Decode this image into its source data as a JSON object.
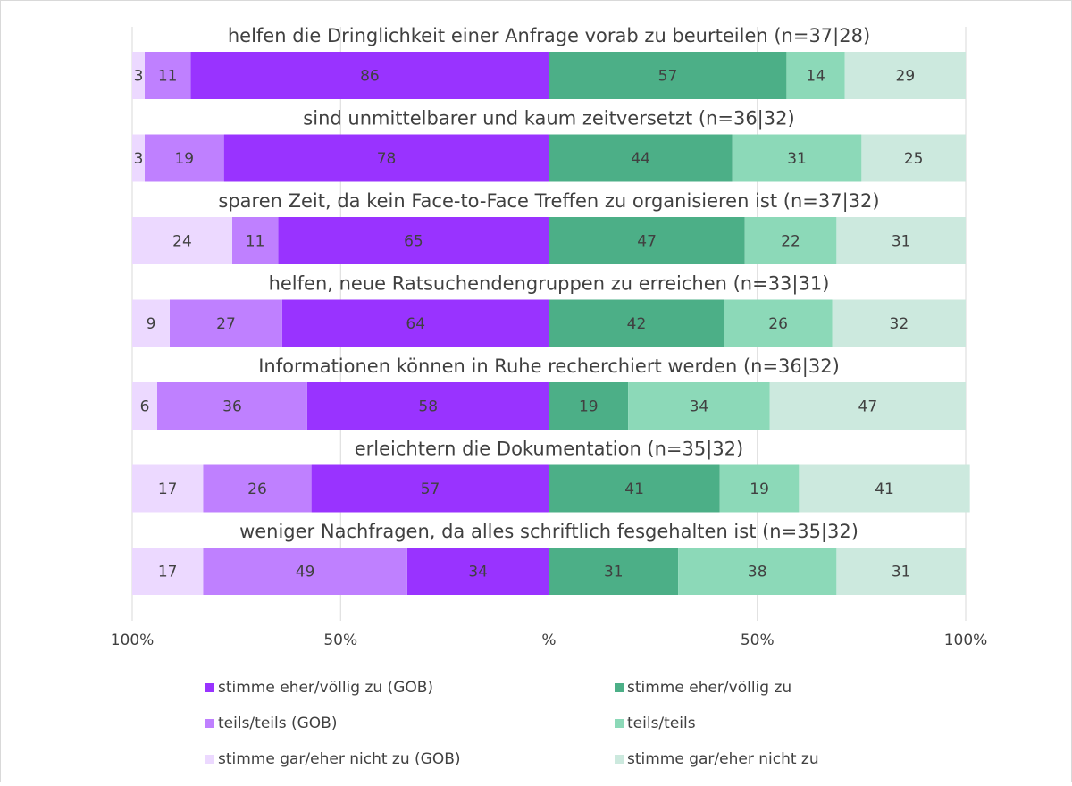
{
  "chart_data": {
    "type": "diverging-bar",
    "categories": [
      "helfen die Dringlichkeit einer Anfrage vorab zu beurteilen (n=37|28)",
      "sind unmittelbarer und kaum zeitversetzt (n=36|32)",
      "sparen Zeit, da kein Face-to-Face Treffen zu organisieren ist (n=37|32)",
      "helfen, neue Ratsuchendengruppen zu erreichen (n=33|31)",
      "Informationen können in Ruhe recherchiert werden (n=36|32)",
      "erleichtern die Dokumentation (n=35|32)",
      "weniger Nachfragen, da alles schriftlich fesgehalten ist (n=35|32)"
    ],
    "series": [
      {
        "name": "stimme eher/völlig zu (GOB)",
        "color": "#9933ff",
        "label_color": "#ffffff",
        "values": [
          -86,
          -78,
          -65,
          -64,
          -58,
          -57,
          -34
        ],
        "value_labels": [
          "86",
          "78",
          "65",
          "64",
          "58",
          "57",
          "34"
        ]
      },
      {
        "name": "teils/teils (GOB)",
        "color": "#bf80ff",
        "label_color": "#404040",
        "values": [
          -11,
          -19,
          -11,
          -27,
          -36,
          -26,
          -49
        ],
        "value_labels": [
          "11",
          "19",
          "11",
          "27",
          "36",
          "26",
          "49"
        ]
      },
      {
        "name": "stimme gar/eher nicht zu (GOB)",
        "color": "#ecd9ff",
        "label_color": "#404040",
        "values": [
          -3,
          -3,
          -24,
          -9,
          -6,
          -17,
          -17
        ],
        "value_labels": [
          "3",
          "3",
          "24",
          "9",
          "6",
          "17",
          "17"
        ]
      },
      {
        "name": "stimme eher/völlig zu",
        "color": "#4caf87",
        "label_color": "#404040",
        "values": [
          57,
          44,
          47,
          42,
          19,
          41,
          31
        ]
      },
      {
        "name": "teils/teils",
        "color": "#8cd9b8",
        "label_color": "#404040",
        "values": [
          14,
          31,
          22,
          26,
          34,
          19,
          38
        ]
      },
      {
        "name": "stimme gar/eher nicht zu",
        "color": "#cce9de",
        "label_color": "#404040",
        "values": [
          29,
          25,
          31,
          32,
          47,
          41,
          31
        ]
      }
    ],
    "xlim": [
      -100,
      100
    ],
    "xticks": [
      {
        "value": -100,
        "label": "100%"
      },
      {
        "value": -50,
        "label": "50%"
      },
      {
        "value": 0,
        "label": "%"
      },
      {
        "value": 50,
        "label": "50%"
      },
      {
        "value": 100,
        "label": "100%"
      }
    ],
    "grid": true
  }
}
